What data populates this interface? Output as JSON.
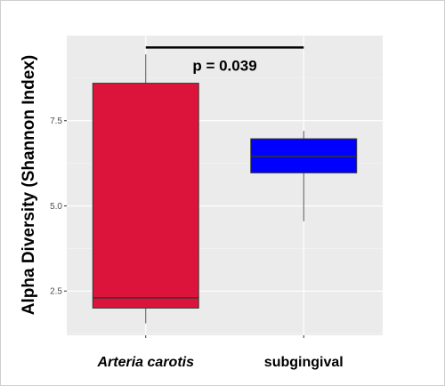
{
  "chart_data": {
    "type": "box",
    "title": "",
    "xlabel": "",
    "ylabel": "Alpha Diversity (Shannon Index)",
    "ylim": [
      1.2,
      10.0
    ],
    "y_ticks": [
      2.5,
      5.0,
      7.5
    ],
    "y_tick_labels": [
      "2.5",
      "5.0",
      "7.5"
    ],
    "grid": true,
    "categories": [
      "Arteria carotis",
      "subgingival"
    ],
    "boxes": [
      {
        "category": "Arteria carotis",
        "min": 1.55,
        "q1": 2.0,
        "median": 2.3,
        "q3": 8.6,
        "max": 9.45,
        "color": "#dc143c"
      },
      {
        "category": "subgingival",
        "min": 4.55,
        "q1": 5.97,
        "median": 6.45,
        "q3": 6.97,
        "max": 7.2,
        "color": "#0000ff"
      }
    ],
    "annotation": {
      "text": "p = 0.039",
      "y": 9.65
    }
  }
}
